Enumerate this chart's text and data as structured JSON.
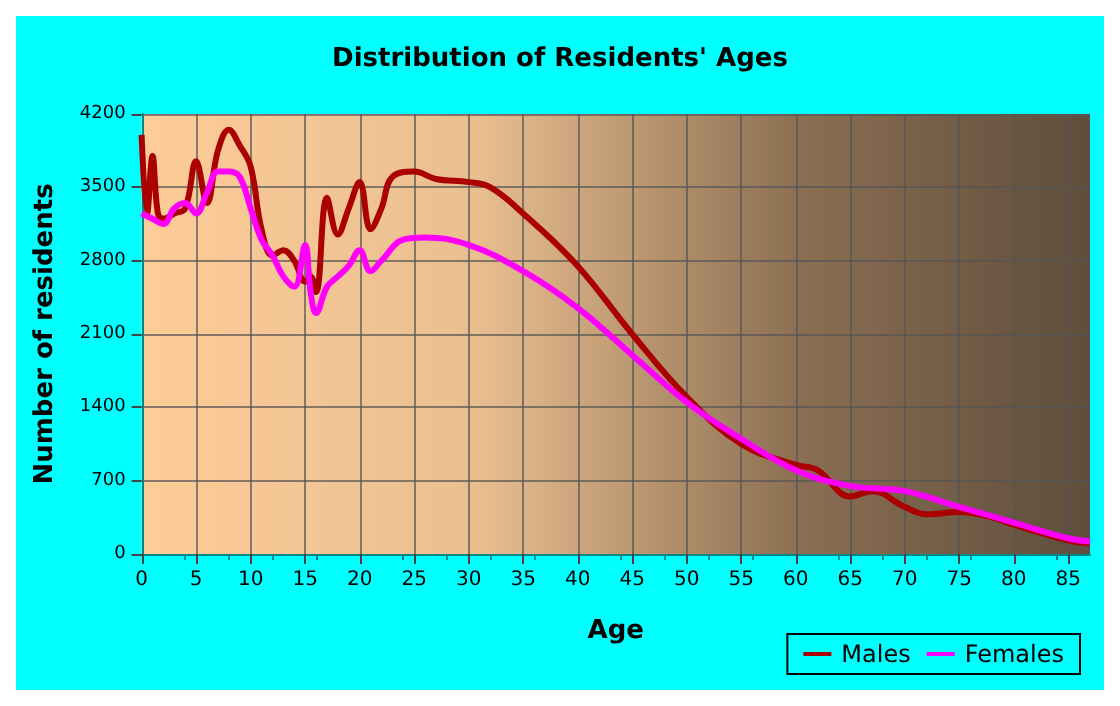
{
  "chart_data": {
    "type": "line",
    "title": "Distribution of Residents' Ages",
    "xlabel": "Age",
    "ylabel": "Number of residents",
    "xlim": [
      0,
      87
    ],
    "xticks": [
      0,
      5,
      10,
      15,
      20,
      25,
      30,
      35,
      40,
      45,
      50,
      55,
      60,
      65,
      70,
      75,
      80,
      85
    ],
    "ylim": [
      0,
      4200
    ],
    "yticks": [
      0,
      700,
      1400,
      2100,
      2800,
      3500,
      4200
    ],
    "grid": true,
    "legend": "bottom right",
    "marker": "none",
    "line_style": "solid",
    "series": [
      {
        "name": "Males",
        "color": "#aa0000",
        "x": [
          0,
          0.5,
          1,
          1.5,
          2,
          3,
          4,
          5,
          6,
          7,
          8,
          9,
          10,
          11,
          12,
          13,
          14,
          15,
          15.5,
          16,
          17,
          18,
          19,
          20,
          21,
          22,
          23,
          25,
          27,
          30,
          32,
          35,
          40,
          45,
          50,
          55,
          60,
          62,
          65,
          67,
          70,
          72,
          75,
          78,
          80,
          85,
          87
        ],
        "values": [
          4000,
          3250,
          3800,
          3250,
          3200,
          3250,
          3300,
          3750,
          3350,
          3850,
          4050,
          3900,
          3700,
          3100,
          2850,
          2900,
          2800,
          2600,
          2650,
          2500,
          3400,
          3050,
          3300,
          3550,
          3100,
          3300,
          3600,
          3650,
          3580,
          3550,
          3500,
          3250,
          2750,
          2100,
          1500,
          1050,
          850,
          800,
          550,
          600,
          450,
          380,
          400,
          350,
          280,
          130,
          100
        ]
      },
      {
        "name": "Females",
        "color": "#ff00ff",
        "x": [
          0,
          1,
          2,
          3,
          4,
          5,
          6,
          7,
          8,
          9,
          10,
          11,
          12,
          13,
          14,
          15,
          15.5,
          16,
          17,
          18,
          19,
          20,
          21,
          22,
          24,
          26,
          30,
          35,
          40,
          45,
          50,
          55,
          60,
          65,
          70,
          75,
          80,
          85,
          87
        ],
        "values": [
          3250,
          3200,
          3150,
          3300,
          3350,
          3250,
          3450,
          3650,
          3650,
          3600,
          3300,
          3000,
          2850,
          2650,
          2550,
          2950,
          2500,
          2300,
          2550,
          2650,
          2750,
          2900,
          2700,
          2800,
          3000,
          3020,
          2950,
          2700,
          2350,
          1900,
          1450,
          1100,
          800,
          650,
          600,
          450,
          300,
          150,
          120
        ]
      }
    ]
  }
}
